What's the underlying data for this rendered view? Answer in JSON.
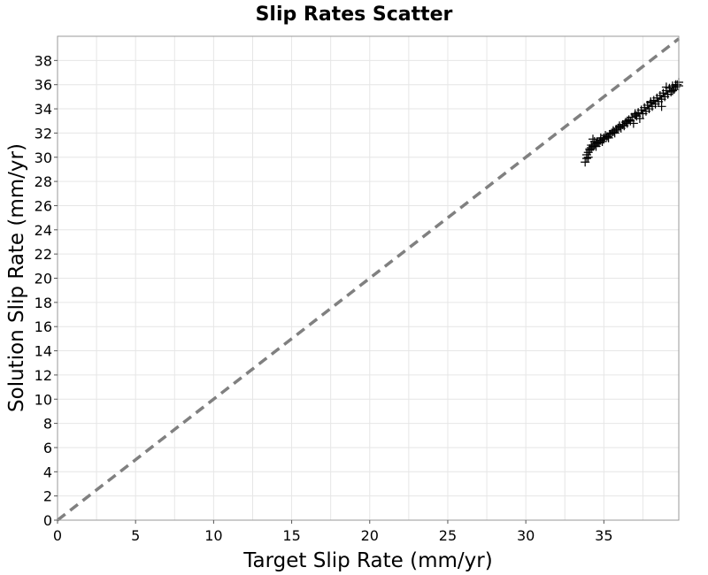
{
  "chart_data": {
    "type": "scatter",
    "title": "Slip Rates Scatter",
    "xlabel": "Target Slip Rate (mm/yr)",
    "ylabel": "Solution Slip Rate (mm/yr)",
    "xlim": [
      0,
      39.8
    ],
    "ylim": [
      0,
      40
    ],
    "xticks": [
      0,
      5,
      10,
      15,
      20,
      25,
      30,
      35
    ],
    "yticks": [
      0,
      2,
      4,
      6,
      8,
      10,
      12,
      14,
      16,
      18,
      20,
      22,
      24,
      26,
      28,
      30,
      32,
      34,
      36,
      38
    ],
    "grid": true,
    "legend": "none",
    "marker": "plus",
    "identity_line": {
      "from": [
        0,
        0
      ],
      "to": [
        39.8,
        39.8
      ],
      "style": "dashed",
      "color": "#808080"
    },
    "series": [
      {
        "color": "#000000",
        "x": [
          33.8,
          33.9,
          33.9,
          34.0,
          34.0,
          34.1,
          34.2,
          34.3,
          34.4,
          34.5,
          34.6,
          34.8,
          35.0,
          35.2,
          35.4,
          35.6,
          35.8,
          36.0,
          36.2,
          36.4,
          36.6,
          36.8,
          37.0,
          37.2,
          37.4,
          37.6,
          37.8,
          38.0,
          38.2,
          38.4,
          38.6,
          38.8,
          39.0,
          39.2,
          39.4,
          39.6,
          34.3,
          34.7,
          35.1,
          35.5,
          35.9,
          36.3,
          36.7,
          37.1,
          37.5,
          37.9,
          38.3,
          38.7,
          39.1,
          39.5,
          39.7,
          39.8,
          39.3,
          38.9,
          38.5,
          38.1,
          37.7,
          37.3,
          36.9,
          36.5,
          36.1,
          35.7,
          35.3,
          34.9,
          34.5,
          34.1,
          35.0,
          36.0,
          37.0,
          38.0,
          39.0,
          39.6,
          39.8,
          39.4,
          38.7,
          36.5,
          35.6,
          34.8,
          34.4,
          34.2
        ],
        "y": [
          29.6,
          29.9,
          30.2,
          30.0,
          30.4,
          30.6,
          30.8,
          30.9,
          31.0,
          31.1,
          31.2,
          31.4,
          31.5,
          31.7,
          31.9,
          32.1,
          32.3,
          32.5,
          32.7,
          32.9,
          33.1,
          33.3,
          33.5,
          33.7,
          33.9,
          34.1,
          34.3,
          34.5,
          34.7,
          34.9,
          35.1,
          35.3,
          35.5,
          35.7,
          35.9,
          36.0,
          31.5,
          31.2,
          31.8,
          32.0,
          32.4,
          32.6,
          33.0,
          33.4,
          33.6,
          34.0,
          34.4,
          34.8,
          35.2,
          35.6,
          36.0,
          36.2,
          35.4,
          35.0,
          34.6,
          34.2,
          33.8,
          33.2,
          32.8,
          32.8,
          32.4,
          32.0,
          31.6,
          31.3,
          30.9,
          30.7,
          31.6,
          32.6,
          33.6,
          34.6,
          35.8,
          35.8,
          35.9,
          35.5,
          34.2,
          33.0,
          32.2,
          31.6,
          31.3,
          31.0
        ]
      }
    ]
  }
}
